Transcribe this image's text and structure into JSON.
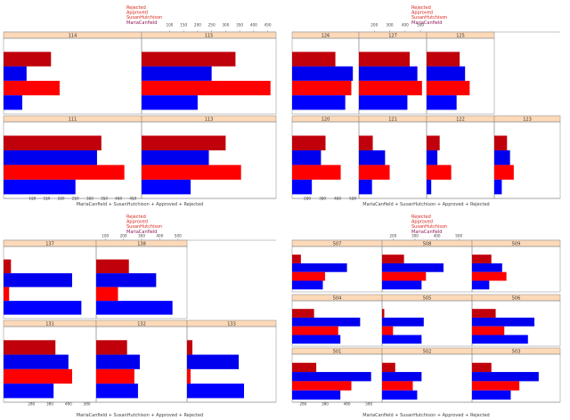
{
  "colors": {
    "rejected": "#c0000a",
    "approved": "#0000ee",
    "susan": "#ff0000",
    "maria": "#0000ff",
    "strip_bg": "#fcd9b8",
    "border": "#888888"
  },
  "chart_data": [
    {
      "type": "bar",
      "orientation": "horizontal",
      "legend": [
        "Rejected",
        "Approved",
        "SusanHutchison",
        "MariaCanfield"
      ],
      "xlabel": "MariaCanfield + SusanHutchison + Approved + Rejected",
      "xlim": [
        0,
        480
      ],
      "top_ticks": [
        100,
        150,
        200,
        250,
        300,
        350,
        400,
        450
      ],
      "bottom_ticks": [
        100,
        150,
        200,
        250,
        300,
        350,
        400,
        450
      ],
      "panels": [
        {
          "label": "114",
          "values": {
            "Rejected": 165,
            "Approved": 80,
            "SusanHutchison": 195,
            "MariaCanfield": 65
          }
        },
        {
          "label": "115",
          "values": {
            "Rejected": 335,
            "Approved": 250,
            "SusanHutchison": 460,
            "MariaCanfield": 200
          }
        },
        {
          "label": "111",
          "values": {
            "Rejected": 340,
            "Approved": 325,
            "SusanHutchison": 420,
            "MariaCanfield": 250
          }
        },
        {
          "label": "113",
          "values": {
            "Rejected": 300,
            "Approved": 240,
            "SusanHutchison": 355,
            "MariaCanfield": 175
          }
        }
      ]
    },
    {
      "type": "bar",
      "orientation": "horizontal",
      "legend": [
        "Rejected",
        "Approved",
        "SusanHutchison",
        "MariaCanfield"
      ],
      "xlabel": "MariaCanfield + SusanHutchison + Approved + Rejected",
      "xlim": [
        100,
        540
      ],
      "top_ticks": [
        200,
        300,
        400,
        500
      ],
      "bottom_ticks": [
        200,
        300,
        400,
        500
      ],
      "panels": [
        {
          "label": "126",
          "values": {
            "Rejected": 385,
            "Approved": 500,
            "SusanHutchison": 490,
            "MariaCanfield": 450
          }
        },
        {
          "label": "127",
          "values": {
            "Rejected": 430,
            "Approved": 480,
            "SusanHutchison": 510,
            "MariaCanfield": 415
          }
        },
        {
          "label": "125",
          "values": {
            "Rejected": 315,
            "Approved": 350,
            "SusanHutchison": 380,
            "MariaCanfield": 295
          }
        },
        {
          "label": "123",
          "values": {
            "Rejected": 185,
            "Approved": 205,
            "SusanHutchison": 230,
            "MariaCanfield": 150
          }
        },
        {
          "label": "120",
          "values": {
            "Rejected": 320,
            "Approved": 290,
            "SusanHutchison": 420,
            "MariaCanfield": 230
          }
        },
        {
          "label": "121",
          "values": {
            "Rejected": 190,
            "Approved": 270,
            "SusanHutchison": 300,
            "MariaCanfield": 185
          }
        },
        {
          "label": "122",
          "values": {
            "Rejected": 185,
            "Approved": 170,
            "SusanHutchison": 260,
            "MariaCanfield": 130
          }
        }
      ]
    },
    {
      "type": "bar",
      "orientation": "horizontal",
      "legend": [
        "Rejected",
        "Approved",
        "SusanHutchison",
        "MariaCanfield"
      ],
      "xlabel": "MariaCanfield + SusanHutchison + Approved + Rejected",
      "xlim": [
        50,
        550
      ],
      "top_ticks": [
        100,
        200,
        300,
        400,
        500
      ],
      "bottom_ticks": [
        200,
        300,
        400,
        500
      ],
      "panels": [
        {
          "label": "137",
          "values": {
            "Rejected": 90,
            "Approved": 420,
            "SusanHutchison": 80,
            "MariaCanfield": 470
          }
        },
        {
          "label": "138",
          "values": {
            "Rejected": 230,
            "Approved": 380,
            "SusanHutchison": 170,
            "MariaCanfield": 470
          }
        },
        {
          "label": "131",
          "values": {
            "Rejected": 330,
            "Approved": 400,
            "SusanHutchison": 420,
            "MariaCanfield": 320
          }
        },
        {
          "label": "132",
          "values": {
            "Rejected": 220,
            "Approved": 290,
            "SusanHutchison": 260,
            "MariaCanfield": 280
          }
        },
        {
          "label": "133",
          "values": {
            "Rejected": 80,
            "Approved": 340,
            "SusanHutchison": 70,
            "MariaCanfield": 370
          }
        }
      ]
    },
    {
      "type": "bar",
      "orientation": "horizontal",
      "legend": [
        "Rejected",
        "Approved",
        "SusanHutchison",
        "MariaCanfield"
      ],
      "xlabel": "MariaCanfield + SusanHutchison + Approved + Rejected",
      "xlim": [
        150,
        560
      ],
      "top_ticks": [
        200,
        300,
        400,
        500
      ],
      "bottom_ticks": [
        200,
        300,
        400,
        500
      ],
      "panels": [
        {
          "label": "507",
          "values": {
            "Rejected": 190,
            "Approved": 400,
            "SusanHutchison": 300,
            "MariaCanfield": 290
          }
        },
        {
          "label": "508",
          "values": {
            "Rejected": 250,
            "Approved": 430,
            "SusanHutchison": 350,
            "MariaCanfield": 330
          }
        },
        {
          "label": "509",
          "values": {
            "Rejected": 240,
            "Approved": 290,
            "SusanHutchison": 310,
            "MariaCanfield": 230
          }
        },
        {
          "label": "504",
          "values": {
            "Rejected": 250,
            "Approved": 460,
            "SusanHutchison": 360,
            "MariaCanfield": 370
          }
        },
        {
          "label": "505",
          "values": {
            "Rejected": 160,
            "Approved": 340,
            "SusanHutchison": 200,
            "MariaCanfield": 330
          }
        },
        {
          "label": "506",
          "values": {
            "Rejected": 260,
            "Approved": 440,
            "SusanHutchison": 300,
            "MariaCanfield": 410
          }
        },
        {
          "label": "501",
          "values": {
            "Rejected": 260,
            "Approved": 510,
            "SusanHutchison": 420,
            "MariaCanfield": 370
          }
        },
        {
          "label": "502",
          "values": {
            "Rejected": 210,
            "Approved": 330,
            "SusanHutchison": 290,
            "MariaCanfield": 310
          }
        },
        {
          "label": "503",
          "values": {
            "Rejected": 240,
            "Approved": 460,
            "SusanHutchison": 370,
            "MariaCanfield": 330
          }
        }
      ]
    }
  ]
}
